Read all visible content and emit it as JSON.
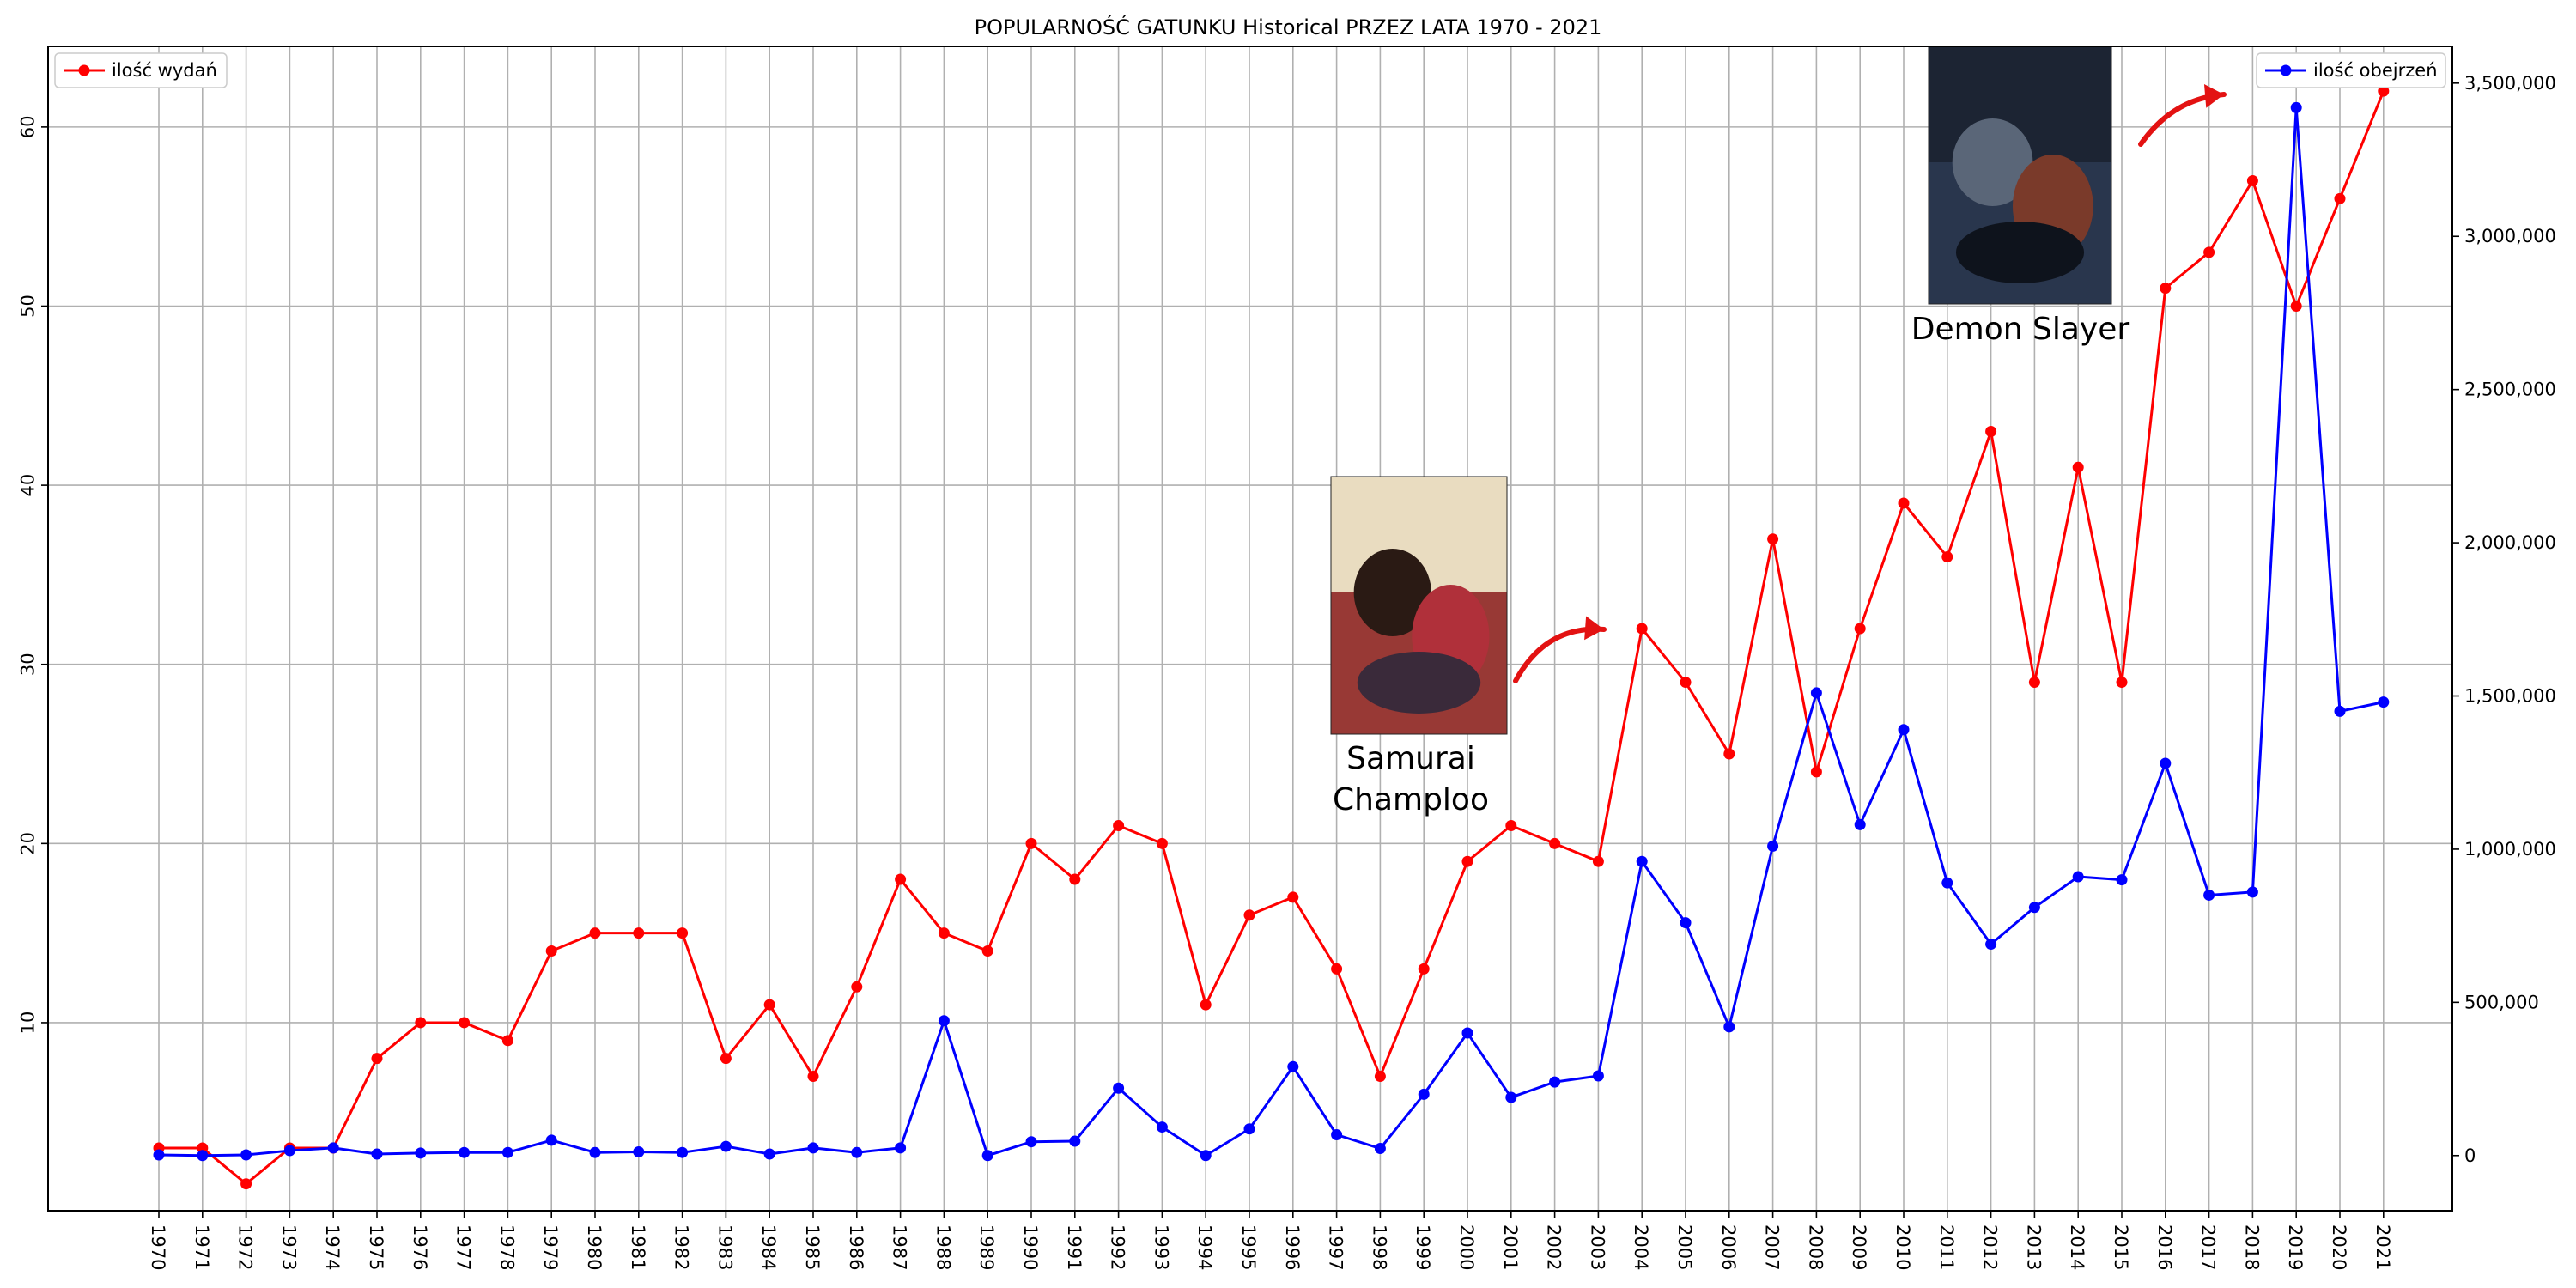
{
  "chart_data": {
    "type": "line",
    "title": "POPULARNOŚĆ GATUNKU Historical PRZEZ LATA 1970 - 2021",
    "xlabel": "",
    "ylabel_left": "",
    "ylabel_right": "",
    "grid": true,
    "categories": [
      "1970",
      "1971",
      "1972",
      "1973",
      "1974",
      "1975",
      "1976",
      "1977",
      "1978",
      "1979",
      "1980",
      "1981",
      "1982",
      "1983",
      "1984",
      "1985",
      "1986",
      "1987",
      "1988",
      "1989",
      "1990",
      "1991",
      "1992",
      "1993",
      "1994",
      "1995",
      "1996",
      "1997",
      "1998",
      "1999",
      "2000",
      "2001",
      "2002",
      "2003",
      "2004",
      "2005",
      "2006",
      "2007",
      "2008",
      "2009",
      "2010",
      "2011",
      "2012",
      "2013",
      "2014",
      "2015",
      "2016",
      "2017",
      "2018",
      "2019",
      "2020",
      "2021"
    ],
    "y_left_range": [
      -0.5,
      64.5
    ],
    "y_left_ticks": [
      10,
      20,
      30,
      40,
      50,
      60
    ],
    "y_right_range": [
      -180000,
      3620000
    ],
    "y_right_ticks": [
      0,
      500000,
      1000000,
      1500000,
      2000000,
      2500000,
      3000000,
      3500000
    ],
    "y_right_tick_labels": [
      "0",
      "500,000",
      "1,000,000",
      "1,500,000",
      "2,000,000",
      "2,500,000",
      "3,000,000",
      "3,500,000"
    ],
    "series": [
      {
        "name": "ilość wydań",
        "axis": "left",
        "color": "#ff0000",
        "legend_position": "upper-left",
        "values": [
          3,
          3,
          1,
          3,
          3,
          8,
          10,
          10,
          9,
          14,
          15,
          15,
          15,
          8,
          11,
          7,
          12,
          18,
          15,
          14,
          20,
          18,
          21,
          20,
          11,
          16,
          17,
          13,
          7,
          13,
          19,
          21,
          20,
          19,
          32,
          29,
          25,
          37,
          24,
          32,
          39,
          36,
          43,
          29,
          41,
          29,
          51,
          53,
          57,
          50,
          56,
          62
        ]
      },
      {
        "name": "ilość obejrzeń",
        "axis": "right",
        "color": "#0000ff",
        "legend_position": "upper-right",
        "values": [
          2000,
          0,
          2000,
          16000,
          25000,
          5000,
          8000,
          10000,
          10000,
          50000,
          10000,
          12000,
          10000,
          30000,
          5000,
          25000,
          10000,
          25000,
          440000,
          0,
          45000,
          47000,
          220000,
          93000,
          0,
          87000,
          290000,
          68000,
          23000,
          200000,
          400000,
          190000,
          240000,
          260000,
          960000,
          760000,
          420000,
          1010000,
          1510000,
          1080000,
          1390000,
          890000,
          690000,
          810000,
          910000,
          900000,
          1280000,
          850000,
          860000,
          3420000,
          1450000,
          1480000
        ]
      }
    ],
    "annotations": [
      {
        "label": "Samurai Champloo",
        "line1": "Samurai",
        "line2": "Champloo",
        "points_to": "2004"
      },
      {
        "label": "Demon Slayer",
        "line1": "Demon Slayer",
        "points_to": "2019"
      }
    ],
    "annotation_colors": {
      "arrow": "#e31212"
    }
  }
}
